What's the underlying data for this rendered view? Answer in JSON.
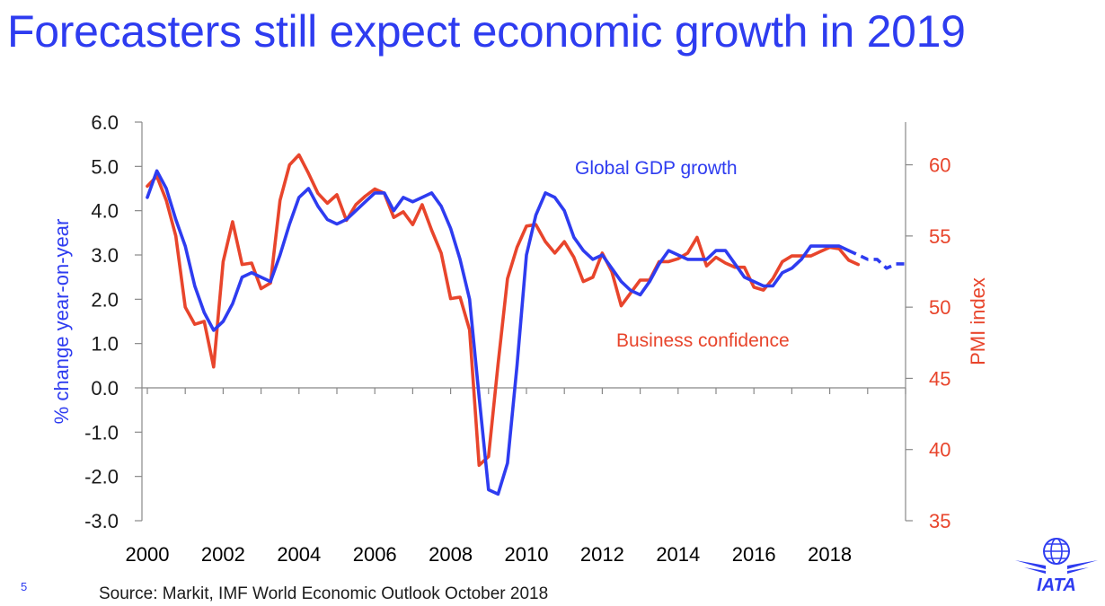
{
  "slide": {
    "title": "Forecasters still expect economic growth in 2019",
    "source": "Source: Markit, IMF World Economic Outlook October 2018",
    "page_number": "5",
    "logo_text": "IATA"
  },
  "colors": {
    "title": "#2e3cf0",
    "gdp": "#2e3cf0",
    "pmi": "#e8452c",
    "axis": "#888888"
  },
  "chart_data": {
    "type": "line",
    "x_ticks": [
      "2000",
      "2002",
      "2004",
      "2006",
      "2008",
      "2010",
      "2012",
      "2014",
      "2016",
      "2018"
    ],
    "xlim": [
      2000,
      2020
    ],
    "y_left": {
      "label": "% change year-on-year",
      "lim": [
        -3.0,
        6.0
      ],
      "ticks": [
        "6.0",
        "5.0",
        "4.0",
        "3.0",
        "2.0",
        "1.0",
        "0.0",
        "-1.0",
        "-2.0",
        "-3.0"
      ]
    },
    "y_right": {
      "label": "PMI index",
      "lim": [
        35,
        63
      ],
      "ticks": [
        "60",
        "55",
        "50",
        "45",
        "40",
        "35"
      ]
    },
    "series": [
      {
        "name": "Global GDP growth",
        "axis": "left",
        "color": "#2e3cf0",
        "points": [
          [
            2000.0,
            4.3
          ],
          [
            2000.25,
            4.9
          ],
          [
            2000.5,
            4.5
          ],
          [
            2000.75,
            3.8
          ],
          [
            2001.0,
            3.2
          ],
          [
            2001.25,
            2.3
          ],
          [
            2001.5,
            1.7
          ],
          [
            2001.75,
            1.3
          ],
          [
            2002.0,
            1.5
          ],
          [
            2002.25,
            1.9
          ],
          [
            2002.5,
            2.5
          ],
          [
            2002.75,
            2.6
          ],
          [
            2003.0,
            2.5
          ],
          [
            2003.25,
            2.4
          ],
          [
            2003.5,
            3.0
          ],
          [
            2003.75,
            3.7
          ],
          [
            2004.0,
            4.3
          ],
          [
            2004.25,
            4.5
          ],
          [
            2004.5,
            4.1
          ],
          [
            2004.75,
            3.8
          ],
          [
            2005.0,
            3.7
          ],
          [
            2005.25,
            3.8
          ],
          [
            2005.5,
            4.0
          ],
          [
            2005.75,
            4.2
          ],
          [
            2006.0,
            4.4
          ],
          [
            2006.25,
            4.4
          ],
          [
            2006.5,
            4.0
          ],
          [
            2006.75,
            4.3
          ],
          [
            2007.0,
            4.2
          ],
          [
            2007.25,
            4.3
          ],
          [
            2007.5,
            4.4
          ],
          [
            2007.75,
            4.1
          ],
          [
            2008.0,
            3.6
          ],
          [
            2008.25,
            2.9
          ],
          [
            2008.5,
            2.0
          ],
          [
            2008.75,
            -0.2
          ],
          [
            2009.0,
            -2.3
          ],
          [
            2009.25,
            -2.4
          ],
          [
            2009.5,
            -1.7
          ],
          [
            2009.75,
            0.5
          ],
          [
            2010.0,
            3.0
          ],
          [
            2010.25,
            3.9
          ],
          [
            2010.5,
            4.4
          ],
          [
            2010.75,
            4.3
          ],
          [
            2011.0,
            4.0
          ],
          [
            2011.25,
            3.4
          ],
          [
            2011.5,
            3.1
          ],
          [
            2011.75,
            2.9
          ],
          [
            2012.0,
            3.0
          ],
          [
            2012.25,
            2.7
          ],
          [
            2012.5,
            2.4
          ],
          [
            2012.75,
            2.2
          ],
          [
            2013.0,
            2.1
          ],
          [
            2013.25,
            2.4
          ],
          [
            2013.5,
            2.8
          ],
          [
            2013.75,
            3.1
          ],
          [
            2014.0,
            3.0
          ],
          [
            2014.25,
            2.9
          ],
          [
            2014.5,
            2.9
          ],
          [
            2014.75,
            2.9
          ],
          [
            2015.0,
            3.1
          ],
          [
            2015.25,
            3.1
          ],
          [
            2015.5,
            2.8
          ],
          [
            2015.75,
            2.5
          ],
          [
            2016.0,
            2.4
          ],
          [
            2016.25,
            2.3
          ],
          [
            2016.5,
            2.3
          ],
          [
            2016.75,
            2.6
          ],
          [
            2017.0,
            2.7
          ],
          [
            2017.25,
            2.9
          ],
          [
            2017.5,
            3.2
          ],
          [
            2017.75,
            3.2
          ],
          [
            2018.0,
            3.2
          ],
          [
            2018.25,
            3.2
          ],
          [
            2018.5,
            3.1
          ]
        ],
        "forecast": [
          [
            2018.5,
            3.1
          ],
          [
            2018.75,
            3.0
          ],
          [
            2019.0,
            2.9
          ],
          [
            2019.25,
            2.9
          ],
          [
            2019.5,
            2.7
          ],
          [
            2019.75,
            2.8
          ],
          [
            2020.0,
            2.8
          ]
        ]
      },
      {
        "name": "Business confidence",
        "axis": "right",
        "color": "#e8452c",
        "points": [
          [
            2000.0,
            58.5
          ],
          [
            2000.25,
            59.2
          ],
          [
            2000.5,
            57.5
          ],
          [
            2000.75,
            55.0
          ],
          [
            2001.0,
            50.0
          ],
          [
            2001.25,
            48.8
          ],
          [
            2001.5,
            49.0
          ],
          [
            2001.75,
            45.8
          ],
          [
            2002.0,
            53.2
          ],
          [
            2002.25,
            56.0
          ],
          [
            2002.5,
            53.0
          ],
          [
            2002.75,
            53.1
          ],
          [
            2003.0,
            51.3
          ],
          [
            2003.25,
            51.7
          ],
          [
            2003.5,
            57.5
          ],
          [
            2003.75,
            60.0
          ],
          [
            2004.0,
            60.7
          ],
          [
            2004.25,
            59.4
          ],
          [
            2004.5,
            58.0
          ],
          [
            2004.75,
            57.3
          ],
          [
            2005.0,
            57.9
          ],
          [
            2005.25,
            56.1
          ],
          [
            2005.5,
            57.2
          ],
          [
            2005.75,
            57.8
          ],
          [
            2006.0,
            58.3
          ],
          [
            2006.25,
            58.0
          ],
          [
            2006.5,
            56.3
          ],
          [
            2006.75,
            56.7
          ],
          [
            2007.0,
            55.8
          ],
          [
            2007.25,
            57.2
          ],
          [
            2007.5,
            55.4
          ],
          [
            2007.75,
            53.8
          ],
          [
            2008.0,
            50.6
          ],
          [
            2008.25,
            50.7
          ],
          [
            2008.5,
            48.4
          ],
          [
            2008.75,
            38.9
          ],
          [
            2009.0,
            39.5
          ],
          [
            2009.25,
            46.0
          ],
          [
            2009.5,
            52.0
          ],
          [
            2009.75,
            54.2
          ],
          [
            2010.0,
            55.7
          ],
          [
            2010.25,
            55.8
          ],
          [
            2010.5,
            54.6
          ],
          [
            2010.75,
            53.8
          ],
          [
            2011.0,
            54.6
          ],
          [
            2011.25,
            53.5
          ],
          [
            2011.5,
            51.8
          ],
          [
            2011.75,
            52.1
          ],
          [
            2012.0,
            53.8
          ],
          [
            2012.25,
            52.5
          ],
          [
            2012.5,
            50.1
          ],
          [
            2012.75,
            51.0
          ],
          [
            2013.0,
            51.9
          ],
          [
            2013.25,
            51.9
          ],
          [
            2013.5,
            53.2
          ],
          [
            2013.75,
            53.2
          ],
          [
            2014.0,
            53.4
          ],
          [
            2014.25,
            53.8
          ],
          [
            2014.5,
            54.9
          ],
          [
            2014.75,
            52.9
          ],
          [
            2015.0,
            53.5
          ],
          [
            2015.25,
            53.1
          ],
          [
            2015.5,
            52.8
          ],
          [
            2015.75,
            52.8
          ],
          [
            2016.0,
            51.4
          ],
          [
            2016.25,
            51.2
          ],
          [
            2016.5,
            52.0
          ],
          [
            2016.75,
            53.2
          ],
          [
            2017.0,
            53.6
          ],
          [
            2017.25,
            53.6
          ],
          [
            2017.5,
            53.6
          ],
          [
            2017.75,
            53.9
          ],
          [
            2018.0,
            54.2
          ],
          [
            2018.25,
            54.1
          ],
          [
            2018.5,
            53.3
          ],
          [
            2018.75,
            53.0
          ]
        ]
      }
    ]
  }
}
